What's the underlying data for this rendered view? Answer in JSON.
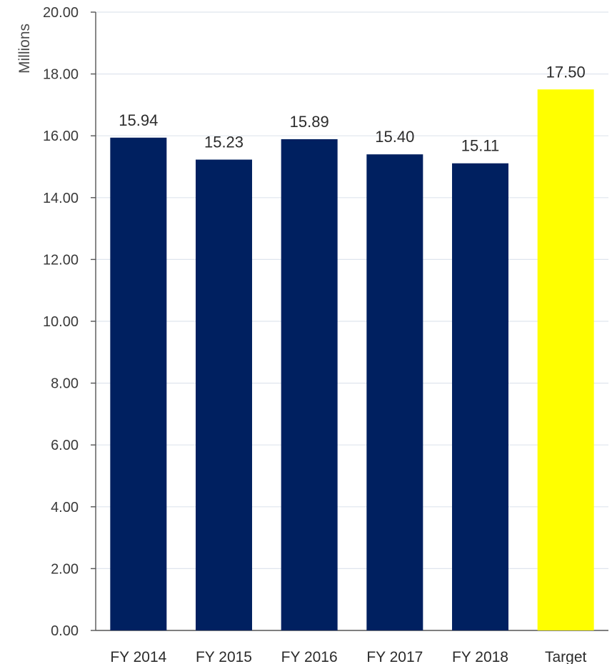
{
  "chart_data": {
    "type": "bar",
    "title": "",
    "xlabel": "",
    "ylabel": "Millions",
    "categories": [
      "FY 2014",
      "FY 2015",
      "FY 2016",
      "FY 2017",
      "FY 2018",
      "Target"
    ],
    "values": [
      15.94,
      15.23,
      15.89,
      15.4,
      15.11,
      17.5
    ],
    "data_labels": [
      "15.94",
      "15.23",
      "15.89",
      "15.40",
      "15.11",
      "17.50"
    ],
    "bar_colors": [
      "#002060",
      "#002060",
      "#002060",
      "#002060",
      "#002060",
      "#FFFF00"
    ],
    "ylim": [
      0,
      20
    ],
    "y_ticks": [
      0,
      2,
      4,
      6,
      8,
      10,
      12,
      14,
      16,
      18,
      20
    ],
    "y_tick_labels": [
      "0.00",
      "2.00",
      "4.00",
      "6.00",
      "8.00",
      "10.00",
      "12.00",
      "14.00",
      "16.00",
      "18.00",
      "20.00"
    ],
    "grid": true,
    "legend": "none"
  }
}
